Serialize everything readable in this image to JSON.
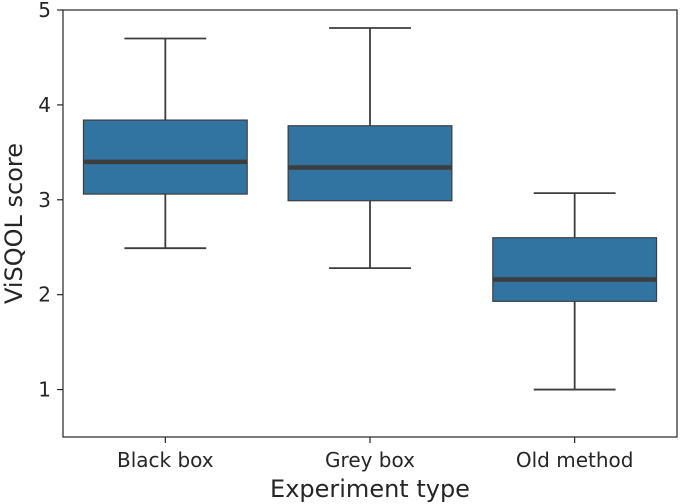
{
  "chart_data": {
    "type": "box",
    "title": "",
    "xlabel": "Experiment type",
    "ylabel": "ViSQOL score",
    "ylim": [
      0.5,
      5.0
    ],
    "yticks": [
      1,
      2,
      3,
      4,
      5
    ],
    "grid": false,
    "box_color": "#3274a1",
    "median_color": "#3d3d3d",
    "whisker_color": "#3d3d3d",
    "categories": [
      "Black box",
      "Grey box",
      "Old method"
    ],
    "boxes": [
      {
        "category": "Black box",
        "whisker_low": 2.49,
        "q1": 3.06,
        "median": 3.4,
        "q3": 3.84,
        "whisker_high": 4.7
      },
      {
        "category": "Grey box",
        "whisker_low": 2.28,
        "q1": 2.99,
        "median": 3.34,
        "q3": 3.78,
        "whisker_high": 4.81
      },
      {
        "category": "Old method",
        "whisker_low": 1.0,
        "q1": 1.93,
        "median": 2.16,
        "q3": 2.6,
        "whisker_high": 3.07
      }
    ]
  }
}
